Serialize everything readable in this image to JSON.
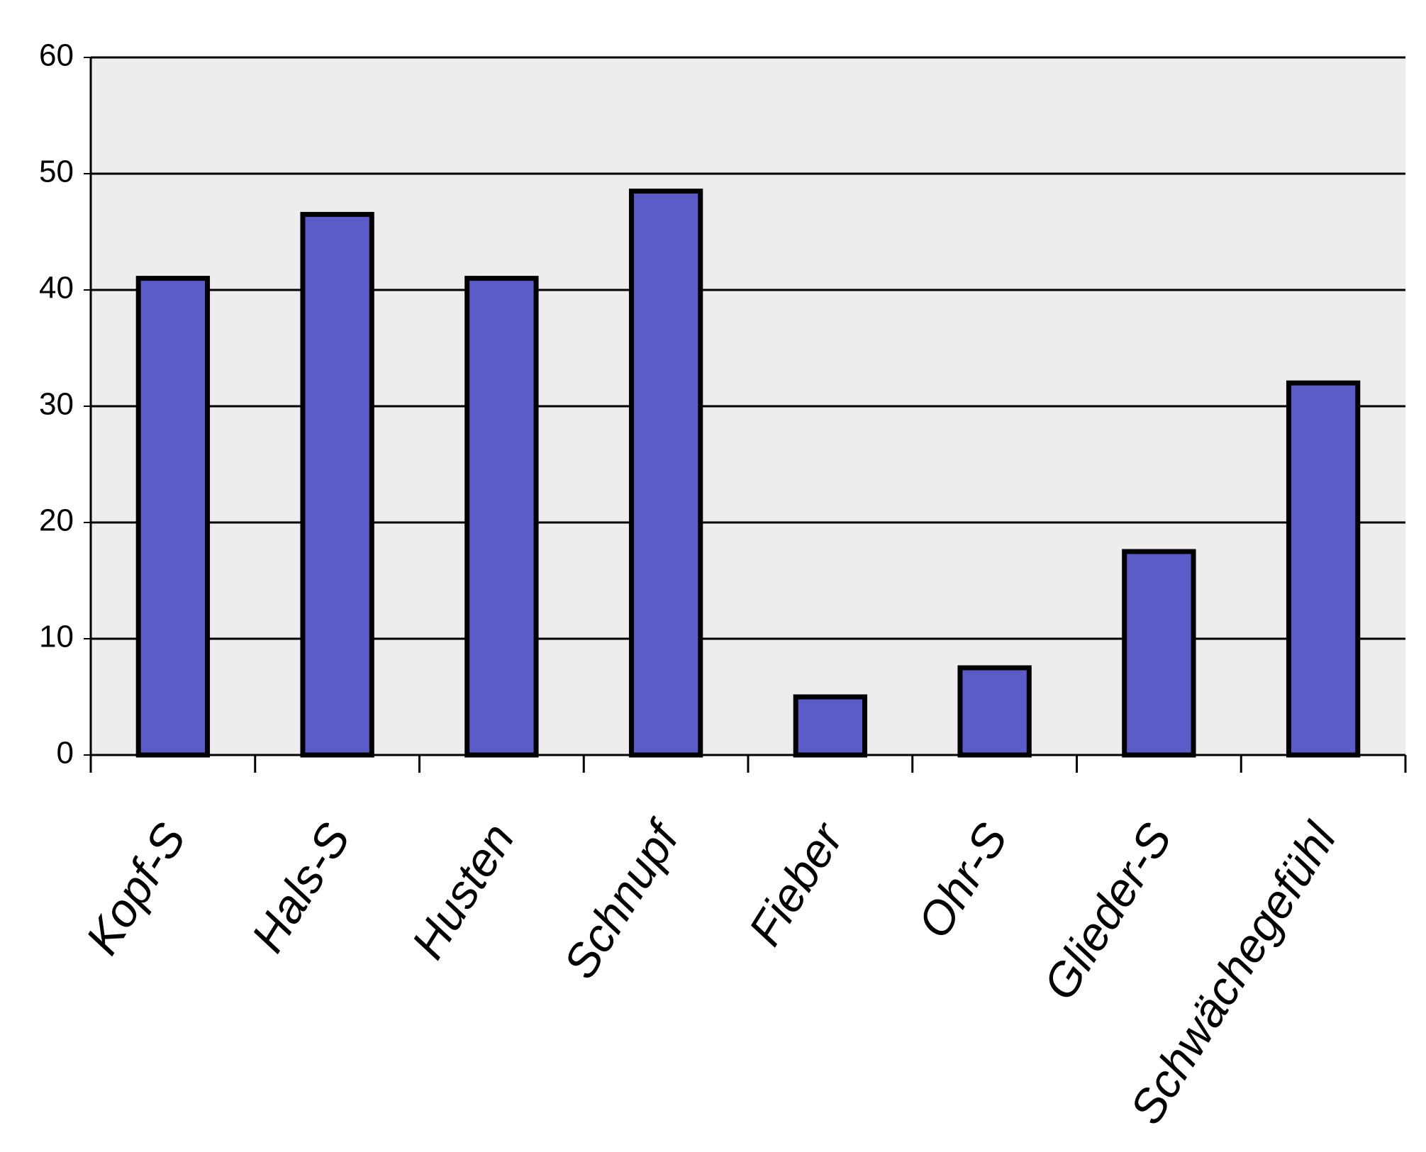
{
  "chart_data": {
    "type": "bar",
    "categories": [
      "Kopf-S",
      "Hals-S",
      "Husten",
      "Schnupf",
      "Fieber",
      "Ohr-S",
      "Glieder-S",
      "Schwächegefühl"
    ],
    "values": [
      41,
      46.5,
      41,
      48.5,
      5,
      7.5,
      17.5,
      32
    ],
    "color": "#5c5cc8",
    "ylim": [
      0,
      60
    ],
    "yticks": [
      0,
      10,
      20,
      30,
      40,
      50,
      60
    ],
    "grid": true
  }
}
